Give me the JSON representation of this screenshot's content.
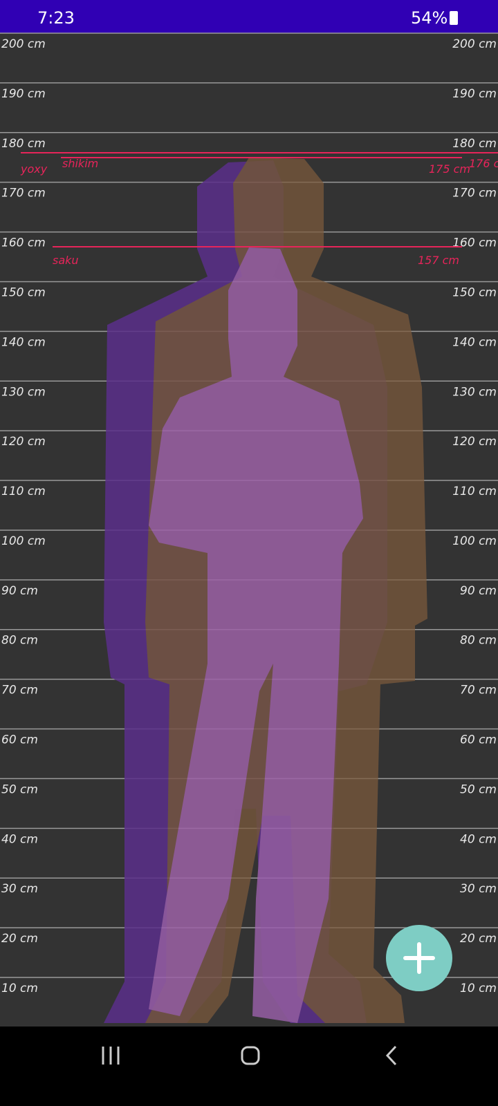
{
  "status_bar": {
    "time": "7:23",
    "battery": "54%"
  },
  "ruler": {
    "labels": [
      "200 cm",
      "190 cm",
      "180 cm",
      "170 cm",
      "160 cm",
      "150 cm",
      "140 cm",
      "130 cm",
      "120 cm",
      "110 cm",
      "100 cm",
      "90 cm",
      "80 cm",
      "70 cm",
      "60 cm",
      "50 cm",
      "40 cm",
      "30 cm",
      "20 cm",
      "10 cm"
    ]
  },
  "people": [
    {
      "name": "yoxy",
      "height": "176 cm"
    },
    {
      "name": "shikim",
      "height": "175 cm"
    },
    {
      "name": "saku",
      "height": "157 cm"
    }
  ]
}
